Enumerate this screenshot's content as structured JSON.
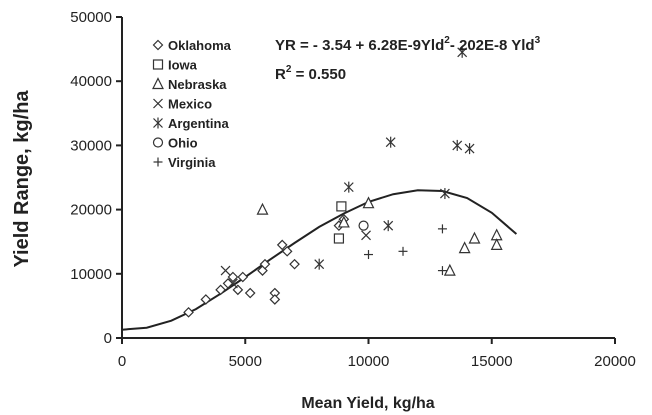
{
  "chart_data": {
    "type": "scatter",
    "xlabel": "Mean Yield, kg/ha",
    "ylabel": "Yield Range, kg/ha",
    "xlim": [
      0,
      20000
    ],
    "ylim": [
      0,
      50000
    ],
    "xticks": [
      0,
      5000,
      10000,
      15000,
      20000
    ],
    "yticks": [
      0,
      10000,
      20000,
      30000,
      40000,
      50000
    ],
    "xtick_labels": [
      "0",
      "5000",
      "10000",
      "15000",
      "20000"
    ],
    "ytick_labels": [
      "0",
      "10000",
      "20000",
      "30000",
      "40000",
      "50000"
    ],
    "grid": false,
    "legend_position": "top-left",
    "equation": {
      "prefix": "YR = - 3.54 + 6.28E-9",
      "term1": "Yld",
      "exp1": "2",
      "middle": "- 202E-8 Yld",
      "exp2": "3",
      "r2_label": "R",
      "r2_exp": "2",
      "r2_value": " = 0.550"
    },
    "series": [
      {
        "name": "Oklahoma",
        "marker": "diamond",
        "points": [
          [
            2700,
            4000
          ],
          [
            3400,
            6000
          ],
          [
            4000,
            7500
          ],
          [
            4300,
            8500
          ],
          [
            4500,
            9500
          ],
          [
            4700,
            7500
          ],
          [
            4900,
            9500
          ],
          [
            5200,
            7000
          ],
          [
            5700,
            10500
          ],
          [
            5800,
            11500
          ],
          [
            6200,
            7000
          ],
          [
            6200,
            6000
          ],
          [
            6500,
            14500
          ],
          [
            6700,
            13500
          ],
          [
            7000,
            11500
          ],
          [
            8800,
            17500
          ],
          [
            9000,
            18500
          ]
        ]
      },
      {
        "name": "Iowa",
        "marker": "square",
        "points": [
          [
            8800,
            15500
          ],
          [
            8900,
            20500
          ]
        ]
      },
      {
        "name": "Nebraska",
        "marker": "triangle",
        "points": [
          [
            5700,
            20000
          ],
          [
            9000,
            18000
          ],
          [
            10000,
            21000
          ],
          [
            13300,
            10500
          ],
          [
            13900,
            14000
          ],
          [
            14300,
            15500
          ],
          [
            15200,
            16000
          ],
          [
            15200,
            14500
          ]
        ]
      },
      {
        "name": "Mexico",
        "marker": "x",
        "points": [
          [
            4200,
            10500
          ],
          [
            4500,
            8500
          ],
          [
            9900,
            16000
          ]
        ]
      },
      {
        "name": "Argentina",
        "marker": "asterisk",
        "points": [
          [
            8000,
            11500
          ],
          [
            9200,
            23500
          ],
          [
            10800,
            17500
          ],
          [
            10900,
            30500
          ],
          [
            13100,
            22500
          ],
          [
            13600,
            30000
          ],
          [
            14100,
            29500
          ],
          [
            13800,
            44500
          ]
        ]
      },
      {
        "name": "Ohio",
        "marker": "circle",
        "points": [
          [
            9800,
            17500
          ]
        ]
      },
      {
        "name": "Virginia",
        "marker": "plus",
        "points": [
          [
            10000,
            13000
          ],
          [
            11400,
            13500
          ],
          [
            13000,
            17000
          ],
          [
            13000,
            10500
          ]
        ]
      }
    ],
    "fit_curve": {
      "x": [
        0,
        1000,
        2000,
        3000,
        4000,
        5000,
        6000,
        7000,
        8000,
        9000,
        10000,
        11000,
        12000,
        13000,
        14000,
        15000,
        16000
      ],
      "y": [
        1300,
        1600,
        2700,
        4500,
        6900,
        9500,
        12200,
        14800,
        17300,
        19400,
        21200,
        22400,
        23000,
        22900,
        21800,
        19500,
        16200
      ]
    }
  }
}
